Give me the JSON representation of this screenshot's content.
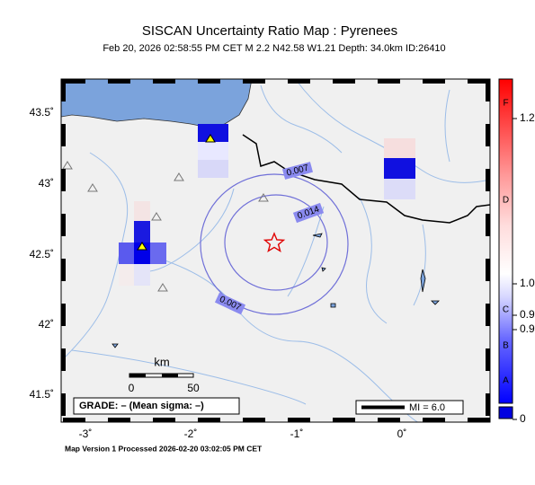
{
  "header": {
    "title": "SISCAN Uncertainty Ratio Map : Pyrenees",
    "subtitle": "Feb 20, 2026 02:58:55 PM CET   M 2.2   N42.58 W1.21   Depth: 34.0km   ID:26410"
  },
  "map": {
    "lat_labels": [
      "43.5˚",
      "43˚",
      "42.5˚",
      "42˚",
      "41.5˚"
    ],
    "lon_labels": [
      "-3˚",
      "-2˚",
      "-1˚",
      "0˚"
    ],
    "contour_labels": [
      "0.007",
      "0.014",
      "0.007"
    ]
  },
  "scale": {
    "unit": "km",
    "labels": [
      "0",
      "50"
    ]
  },
  "grade": "GRADE: – (Mean sigma: –)",
  "mi": "MI = 6.0",
  "colorbar": {
    "grades": [
      "F",
      "D",
      "C",
      "B",
      "A"
    ],
    "values": [
      "1.2",
      "1.0",
      "0.9",
      "0.9",
      "0"
    ]
  },
  "footer": "Map Version 1 Processed 2026-02-20 03:02:05 PM CET"
}
